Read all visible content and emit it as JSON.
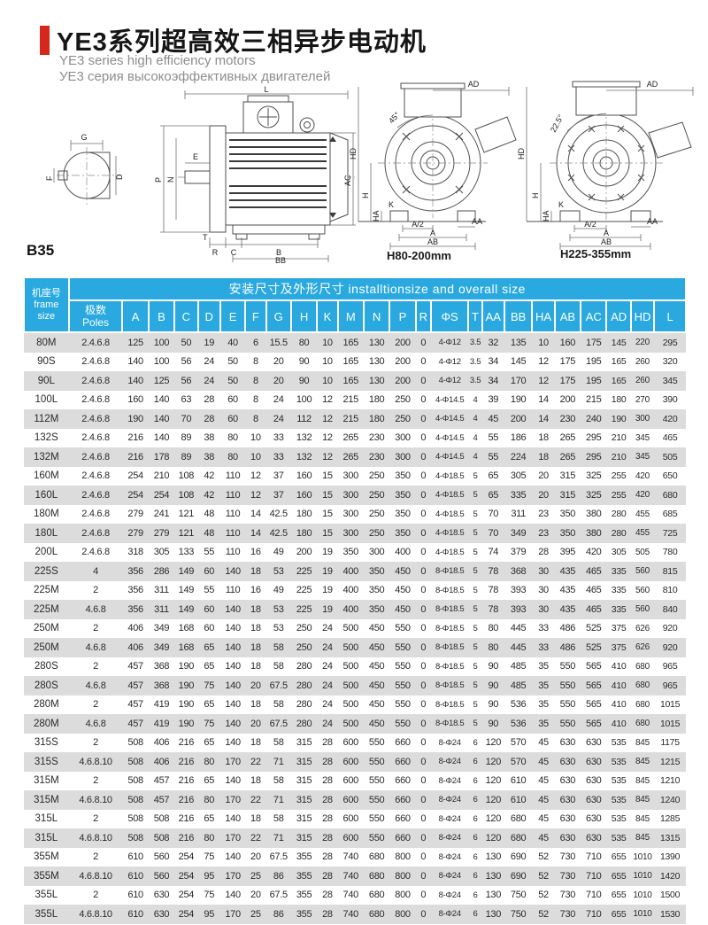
{
  "colors": {
    "accent_red": "#d4281e",
    "header_blue": "#29a9e0",
    "row_alt": "#dcdcdc"
  },
  "header": {
    "title_cn": "YE3系列超高效三相异步电动机",
    "subtitle_en": "YE3 series high efficiency motors",
    "subtitle_ru": "УЕ3 серия высокоэффективных двигателей"
  },
  "mounting_code": "B35",
  "drawings": {
    "shaft_detail": {
      "g": "G",
      "f": "F",
      "d": "D"
    },
    "side_view": {
      "l": "L",
      "e": "E",
      "p": "P",
      "n": "N",
      "t": "T",
      "r": "R",
      "c": "C",
      "b": "B",
      "bb": "BB",
      "ac": "AC"
    },
    "end_view_small": {
      "ad": "AD",
      "angle": "45°",
      "hd": "HD",
      "h": "H",
      "ha": "HA",
      "k": "K",
      "a2": "A/2",
      "a": "A",
      "ab": "AB",
      "aa": "AA",
      "caption": "H80-200mm"
    },
    "end_view_large": {
      "ad": "AD",
      "angle": "22.5°",
      "hd": "HD",
      "h": "H",
      "ha": "HA",
      "k": "K",
      "a2": "A/2",
      "a": "A",
      "ab": "AB",
      "aa": "AA",
      "caption": "H225-355mm"
    }
  },
  "table": {
    "group_header": "安装尺寸及外形尺寸 installtionsize and overall size",
    "frame_header_cn": "机座号",
    "frame_header_en": "frame size",
    "poles_header_cn": "极数",
    "poles_header_en": "Poles",
    "columns": [
      "A",
      "B",
      "C",
      "D",
      "E",
      "F",
      "G",
      "H",
      "K",
      "M",
      "N",
      "P",
      "R",
      "ΦS",
      "T",
      "AA",
      "BB",
      "HA",
      "AB",
      "AC",
      "AD",
      "HD",
      "L"
    ],
    "rows": [
      {
        "frame": "80M",
        "poles": "2.4.6.8",
        "values": [
          "125",
          "100",
          "50",
          "19",
          "40",
          "6",
          "15.5",
          "80",
          "10",
          "165",
          "130",
          "200",
          "0",
          "4-Φ12",
          "3.5",
          "32",
          "135",
          "10",
          "160",
          "175",
          "145",
          "220",
          "295"
        ]
      },
      {
        "frame": "90S",
        "poles": "2.4.6.8",
        "values": [
          "140",
          "100",
          "56",
          "24",
          "50",
          "8",
          "20",
          "90",
          "10",
          "165",
          "130",
          "200",
          "0",
          "4-Φ12",
          "3.5",
          "34",
          "145",
          "12",
          "175",
          "195",
          "165",
          "260",
          "320"
        ]
      },
      {
        "frame": "90L",
        "poles": "2.4.6.8",
        "values": [
          "140",
          "125",
          "56",
          "24",
          "50",
          "8",
          "20",
          "90",
          "10",
          "165",
          "130",
          "200",
          "0",
          "4-Φ12",
          "3.5",
          "34",
          "170",
          "12",
          "175",
          "195",
          "165",
          "260",
          "345"
        ]
      },
      {
        "frame": "100L",
        "poles": "2.4.6.8",
        "values": [
          "160",
          "140",
          "63",
          "28",
          "60",
          "8",
          "24",
          "100",
          "12",
          "215",
          "180",
          "250",
          "0",
          "4-Φ14.5",
          "4",
          "39",
          "190",
          "14",
          "200",
          "215",
          "180",
          "270",
          "390"
        ]
      },
      {
        "frame": "112M",
        "poles": "2.4.6.8",
        "values": [
          "190",
          "140",
          "70",
          "28",
          "60",
          "8",
          "24",
          "112",
          "12",
          "215",
          "180",
          "250",
          "0",
          "4-Φ14.5",
          "4",
          "45",
          "200",
          "14",
          "230",
          "240",
          "190",
          "300",
          "420"
        ]
      },
      {
        "frame": "132S",
        "poles": "2.4.6.8",
        "values": [
          "216",
          "140",
          "89",
          "38",
          "80",
          "10",
          "33",
          "132",
          "12",
          "265",
          "230",
          "300",
          "0",
          "4-Φ14.5",
          "4",
          "55",
          "186",
          "18",
          "265",
          "295",
          "210",
          "345",
          "465"
        ]
      },
      {
        "frame": "132M",
        "poles": "2.4.6.8",
        "values": [
          "216",
          "178",
          "89",
          "38",
          "80",
          "10",
          "33",
          "132",
          "12",
          "265",
          "230",
          "300",
          "0",
          "4-Φ14.5",
          "4",
          "55",
          "224",
          "18",
          "265",
          "295",
          "210",
          "345",
          "505"
        ]
      },
      {
        "frame": "160M",
        "poles": "2.4.6.8",
        "values": [
          "254",
          "210",
          "108",
          "42",
          "110",
          "12",
          "37",
          "160",
          "15",
          "300",
          "250",
          "350",
          "0",
          "4-Φ18.5",
          "5",
          "65",
          "305",
          "20",
          "315",
          "325",
          "255",
          "420",
          "650"
        ]
      },
      {
        "frame": "160L",
        "poles": "2.4.6.8",
        "values": [
          "254",
          "254",
          "108",
          "42",
          "110",
          "12",
          "37",
          "160",
          "15",
          "300",
          "250",
          "350",
          "0",
          "4-Φ18.5",
          "5",
          "65",
          "335",
          "20",
          "315",
          "325",
          "255",
          "420",
          "680"
        ]
      },
      {
        "frame": "180M",
        "poles": "2.4.6.8",
        "values": [
          "279",
          "241",
          "121",
          "48",
          "110",
          "14",
          "42.5",
          "180",
          "15",
          "300",
          "250",
          "350",
          "0",
          "4-Φ18.5",
          "5",
          "70",
          "311",
          "23",
          "350",
          "380",
          "280",
          "455",
          "685"
        ]
      },
      {
        "frame": "180L",
        "poles": "2.4.6.8",
        "values": [
          "279",
          "279",
          "121",
          "48",
          "110",
          "14",
          "42.5",
          "180",
          "15",
          "300",
          "250",
          "350",
          "0",
          "4-Φ18.5",
          "5",
          "70",
          "349",
          "23",
          "350",
          "380",
          "280",
          "455",
          "725"
        ]
      },
      {
        "frame": "200L",
        "poles": "2.4.6.8",
        "values": [
          "318",
          "305",
          "133",
          "55",
          "110",
          "16",
          "49",
          "200",
          "19",
          "350",
          "300",
          "400",
          "0",
          "4-Φ18.5",
          "5",
          "74",
          "379",
          "28",
          "395",
          "420",
          "305",
          "505",
          "780"
        ]
      },
      {
        "frame": "225S",
        "poles": "4",
        "values": [
          "356",
          "286",
          "149",
          "60",
          "140",
          "18",
          "53",
          "225",
          "19",
          "400",
          "350",
          "450",
          "0",
          "8-Φ18.5",
          "5",
          "78",
          "368",
          "30",
          "435",
          "465",
          "335",
          "560",
          "815"
        ]
      },
      {
        "frame": "225M",
        "poles": "2",
        "values": [
          "356",
          "311",
          "149",
          "55",
          "110",
          "16",
          "49",
          "225",
          "19",
          "400",
          "350",
          "450",
          "0",
          "8-Φ18.5",
          "5",
          "78",
          "393",
          "30",
          "435",
          "465",
          "335",
          "560",
          "810"
        ]
      },
      {
        "frame": "225M",
        "poles": "4.6.8",
        "values": [
          "356",
          "311",
          "149",
          "60",
          "140",
          "18",
          "53",
          "225",
          "19",
          "400",
          "350",
          "450",
          "0",
          "8-Φ18.5",
          "5",
          "78",
          "393",
          "30",
          "435",
          "465",
          "335",
          "560",
          "840"
        ]
      },
      {
        "frame": "250M",
        "poles": "2",
        "values": [
          "406",
          "349",
          "168",
          "60",
          "140",
          "18",
          "53",
          "250",
          "24",
          "500",
          "450",
          "550",
          "0",
          "8-Φ18.5",
          "5",
          "80",
          "445",
          "33",
          "486",
          "525",
          "375",
          "626",
          "920"
        ]
      },
      {
        "frame": "250M",
        "poles": "4.6.8",
        "values": [
          "406",
          "349",
          "168",
          "65",
          "140",
          "18",
          "58",
          "250",
          "24",
          "500",
          "450",
          "550",
          "0",
          "8-Φ18.5",
          "5",
          "80",
          "445",
          "33",
          "486",
          "525",
          "375",
          "626",
          "920"
        ]
      },
      {
        "frame": "280S",
        "poles": "2",
        "values": [
          "457",
          "368",
          "190",
          "65",
          "140",
          "18",
          "58",
          "280",
          "24",
          "500",
          "450",
          "550",
          "0",
          "8-Φ18.5",
          "5",
          "90",
          "485",
          "35",
          "550",
          "565",
          "410",
          "680",
          "965"
        ]
      },
      {
        "frame": "280S",
        "poles": "4.6.8",
        "values": [
          "457",
          "368",
          "190",
          "75",
          "140",
          "20",
          "67.5",
          "280",
          "24",
          "500",
          "450",
          "550",
          "0",
          "8-Φ18.5",
          "5",
          "90",
          "485",
          "35",
          "550",
          "565",
          "410",
          "680",
          "965"
        ]
      },
      {
        "frame": "280M",
        "poles": "2",
        "values": [
          "457",
          "419",
          "190",
          "65",
          "140",
          "18",
          "58",
          "280",
          "24",
          "500",
          "450",
          "550",
          "0",
          "8-Φ18.5",
          "5",
          "90",
          "536",
          "35",
          "550",
          "565",
          "410",
          "680",
          "1015"
        ]
      },
      {
        "frame": "280M",
        "poles": "4.6.8",
        "values": [
          "457",
          "419",
          "190",
          "75",
          "140",
          "20",
          "67.5",
          "280",
          "24",
          "500",
          "450",
          "550",
          "0",
          "8-Φ18.5",
          "5",
          "90",
          "536",
          "35",
          "550",
          "565",
          "410",
          "680",
          "1015"
        ]
      },
      {
        "frame": "315S",
        "poles": "2",
        "values": [
          "508",
          "406",
          "216",
          "65",
          "140",
          "18",
          "58",
          "315",
          "28",
          "600",
          "550",
          "660",
          "0",
          "8-Φ24",
          "6",
          "120",
          "570",
          "45",
          "630",
          "630",
          "535",
          "845",
          "1175"
        ]
      },
      {
        "frame": "315S",
        "poles": "4.6.8.10",
        "values": [
          "508",
          "406",
          "216",
          "80",
          "170",
          "22",
          "71",
          "315",
          "28",
          "600",
          "550",
          "660",
          "0",
          "8-Φ24",
          "6",
          "120",
          "570",
          "45",
          "630",
          "630",
          "535",
          "845",
          "1215"
        ]
      },
      {
        "frame": "315M",
        "poles": "2",
        "values": [
          "508",
          "457",
          "216",
          "65",
          "140",
          "18",
          "58",
          "315",
          "28",
          "600",
          "550",
          "660",
          "0",
          "8-Φ24",
          "6",
          "120",
          "610",
          "45",
          "630",
          "630",
          "535",
          "845",
          "1210"
        ]
      },
      {
        "frame": "315M",
        "poles": "4.6.8.10",
        "values": [
          "508",
          "457",
          "216",
          "80",
          "170",
          "22",
          "71",
          "315",
          "28",
          "600",
          "550",
          "660",
          "0",
          "8-Φ24",
          "6",
          "120",
          "610",
          "45",
          "630",
          "630",
          "535",
          "845",
          "1240"
        ]
      },
      {
        "frame": "315L",
        "poles": "2",
        "values": [
          "508",
          "508",
          "216",
          "65",
          "140",
          "18",
          "58",
          "315",
          "28",
          "600",
          "550",
          "660",
          "0",
          "8-Φ24",
          "6",
          "120",
          "680",
          "45",
          "630",
          "630",
          "535",
          "845",
          "1285"
        ]
      },
      {
        "frame": "315L",
        "poles": "4.6.8.10",
        "values": [
          "508",
          "508",
          "216",
          "80",
          "170",
          "22",
          "71",
          "315",
          "28",
          "600",
          "550",
          "660",
          "0",
          "8-Φ24",
          "6",
          "120",
          "680",
          "45",
          "630",
          "630",
          "535",
          "845",
          "1315"
        ]
      },
      {
        "frame": "355M",
        "poles": "2",
        "values": [
          "610",
          "560",
          "254",
          "75",
          "140",
          "20",
          "67.5",
          "355",
          "28",
          "740",
          "680",
          "800",
          "0",
          "8-Φ24",
          "6",
          "130",
          "690",
          "52",
          "730",
          "710",
          "655",
          "1010",
          "1390"
        ]
      },
      {
        "frame": "355M",
        "poles": "4.6.8.10",
        "values": [
          "610",
          "560",
          "254",
          "95",
          "170",
          "25",
          "86",
          "355",
          "28",
          "740",
          "680",
          "800",
          "0",
          "8-Φ24",
          "6",
          "130",
          "690",
          "52",
          "730",
          "710",
          "655",
          "1010",
          "1420"
        ]
      },
      {
        "frame": "355L",
        "poles": "2",
        "values": [
          "610",
          "630",
          "254",
          "75",
          "140",
          "20",
          "67.5",
          "355",
          "28",
          "740",
          "680",
          "800",
          "0",
          "8-Φ24",
          "6",
          "130",
          "750",
          "52",
          "730",
          "710",
          "655",
          "1010",
          "1500"
        ]
      },
      {
        "frame": "355L",
        "poles": "4.6.8.10",
        "values": [
          "610",
          "630",
          "254",
          "95",
          "170",
          "25",
          "86",
          "355",
          "28",
          "740",
          "680",
          "800",
          "0",
          "8-Φ24",
          "6",
          "130",
          "750",
          "52",
          "730",
          "710",
          "655",
          "1010",
          "1530"
        ]
      }
    ]
  }
}
